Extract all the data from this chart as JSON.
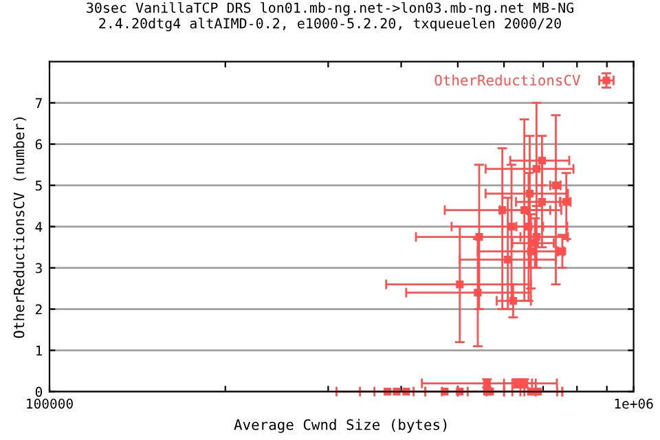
{
  "chart_data": {
    "type": "scatter",
    "title": "30sec VanillaTCP DRS lon01.mb-ng.net->lon03.mb-ng.net MB-NG\n2.4.20dtg4 altAIMD-0.2, e1000-5.2.20, txqueuelen 2000/20",
    "xlabel": "Average Cwnd Size (bytes)",
    "ylabel": "OtherReductionsCV (number)",
    "log": "x",
    "xlim": [
      100000,
      1000000
    ],
    "xticks": [
      {
        "value": 100000,
        "label": "100000"
      },
      {
        "value": 200000,
        "label": null
      },
      {
        "value": 300000,
        "label": null
      },
      {
        "value": 400000,
        "label": null
      },
      {
        "value": 500000,
        "label": null
      },
      {
        "value": 600000,
        "label": null
      },
      {
        "value": 700000,
        "label": null
      },
      {
        "value": 800000,
        "label": null
      },
      {
        "value": 900000,
        "label": null
      },
      {
        "value": 1000000,
        "label": "1e+06"
      }
    ],
    "ylim": [
      0,
      8
    ],
    "yticks": [
      0,
      1,
      2,
      3,
      4,
      5,
      6,
      7
    ],
    "grid": "y",
    "legend": "top right",
    "marker": "square",
    "series": [
      {
        "name": "OtherReductionsCV",
        "color": "#ff5050",
        "x": [
          697000,
          682000,
          736000,
          664000,
          697000,
          767000,
          596000,
          650000,
          618000,
          544000,
          682000,
          678000,
          667000,
          755000,
          609000,
          504000,
          541000,
          622000,
          661000,
          561000,
          632000,
          650000,
          379000,
          393000,
          408000,
          475000,
          504000,
          561000,
          568000,
          667000,
          678000,
          686000
        ],
        "values": [
          5.6,
          5.4,
          5.0,
          4.8,
          4.6,
          4.6,
          4.4,
          4.4,
          4.0,
          3.75,
          3.75,
          3.6,
          3.4,
          3.4,
          3.2,
          2.6,
          2.4,
          2.2,
          4.0,
          0.2,
          0.2,
          0.2,
          0,
          0,
          0,
          0,
          0,
          0,
          0,
          0,
          0,
          0
        ],
        "errors": [
          [
            5.0,
            6.2
          ],
          [
            4.4,
            7.0
          ],
          [
            2.6,
            6.7
          ],
          [
            3.0,
            6.2
          ],
          [
            3.5,
            5.6
          ],
          [
            3.7,
            5.3
          ],
          [
            2.0,
            5.9
          ],
          [
            2.2,
            6.6
          ],
          [
            2.2,
            5.5
          ],
          [
            2.0,
            5.5
          ],
          [
            3.0,
            4.5
          ],
          [
            3.0,
            4.2
          ],
          [
            2.5,
            4.3
          ],
          [
            3.0,
            3.8
          ],
          [
            2.0,
            4.7
          ],
          [
            1.2,
            4.0
          ],
          [
            1.1,
            3.7
          ],
          [
            1.8,
            2.6
          ],
          [
            2.2,
            5.3
          ],
          [
            0.1,
            0.3
          ],
          [
            0.1,
            0.3
          ],
          [
            0.1,
            0.3
          ],
          null,
          null,
          null,
          null,
          null,
          null,
          null,
          null,
          null,
          null
        ],
        "xerrors": [
          [
            615000,
            776000
          ],
          [
            558000,
            789000
          ],
          [
            720000,
            750000
          ],
          [
            558000,
            772000
          ],
          [
            629000,
            748000
          ],
          [
            750000,
            780000
          ],
          [
            475000,
            752000
          ],
          [
            590000,
            720000
          ],
          [
            488000,
            770000
          ],
          [
            424000,
            772000
          ],
          [
            640000,
            770000
          ],
          [
            620000,
            730000
          ],
          [
            541000,
            743000
          ],
          [
            740000,
            760000
          ],
          [
            504000,
            736000
          ],
          [
            377000,
            667000
          ],
          [
            408000,
            667000
          ],
          [
            583000,
            667000
          ],
          [
            630000,
            700000
          ],
          [
            434000,
            739000
          ],
          [
            600000,
            670000
          ],
          [
            620000,
            680000
          ],
          [
            310000,
            440000
          ],
          [
            340000,
            470000
          ],
          [
            360000,
            500000
          ],
          [
            420000,
            560000
          ],
          [
            440000,
            600000
          ],
          [
            500000,
            650000
          ],
          [
            520000,
            680000
          ],
          [
            600000,
            740000
          ],
          [
            620000,
            755000
          ],
          [
            640000,
            755000
          ]
        ]
      }
    ]
  }
}
